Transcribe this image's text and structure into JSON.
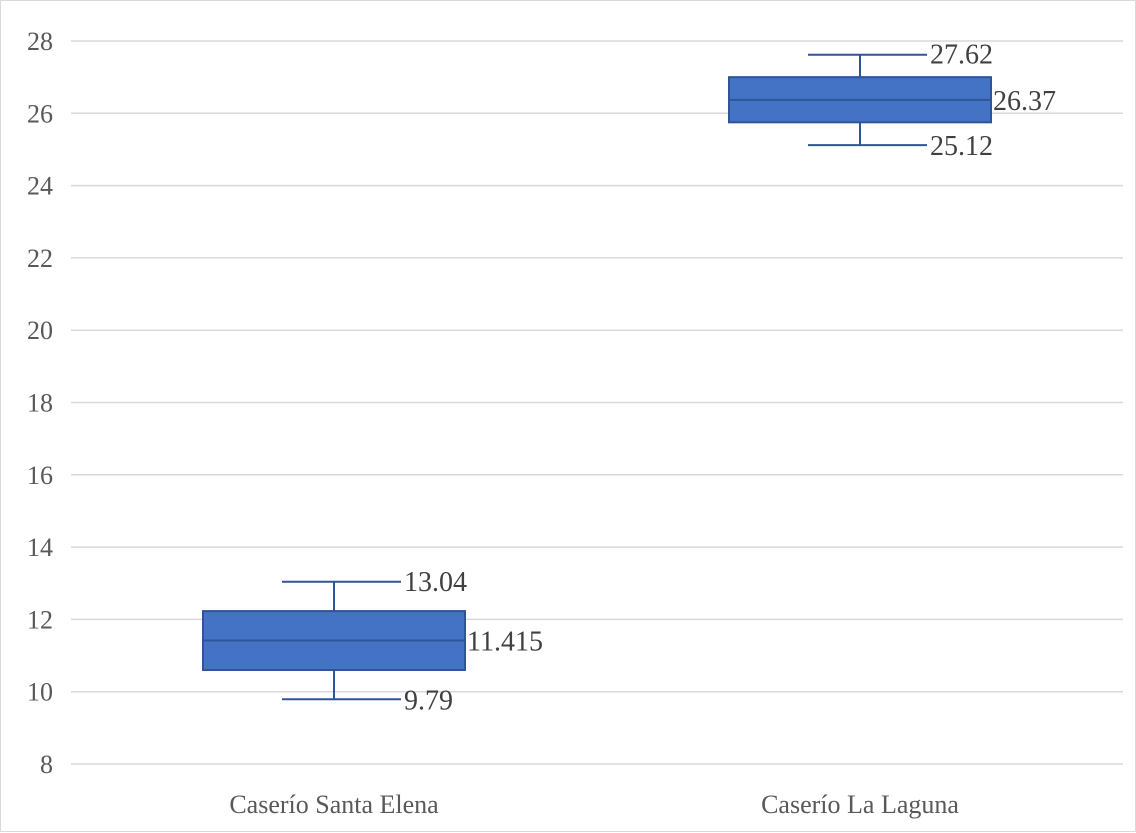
{
  "chart_data": {
    "type": "box",
    "title": "",
    "xlabel": "",
    "ylabel": "",
    "ylim": [
      8,
      28
    ],
    "y_ticks": [
      8,
      10,
      12,
      14,
      16,
      18,
      20,
      22,
      24,
      26,
      28
    ],
    "grid": true,
    "legend": "none",
    "categories": [
      "Caserío Santa Elena",
      "Caserío La Laguna"
    ],
    "boxes": [
      {
        "category": "Caserío Santa Elena",
        "min": 9.79,
        "q1": 10.6,
        "median": 11.415,
        "q3": 12.23,
        "max": 13.04,
        "labels": {
          "max": "13.04",
          "median": "11.415",
          "min": "9.79"
        }
      },
      {
        "category": "Caserío La Laguna",
        "min": 25.12,
        "q1": 25.75,
        "median": 26.37,
        "q3": 27.0,
        "max": 27.62,
        "labels": {
          "max": "27.62",
          "median": "26.37",
          "min": "25.12"
        }
      }
    ],
    "colors": {
      "box_fill": "#4472C4",
      "box_stroke": "#2F5597",
      "grid": "#d9d9d9",
      "axis_text": "#595959"
    }
  }
}
